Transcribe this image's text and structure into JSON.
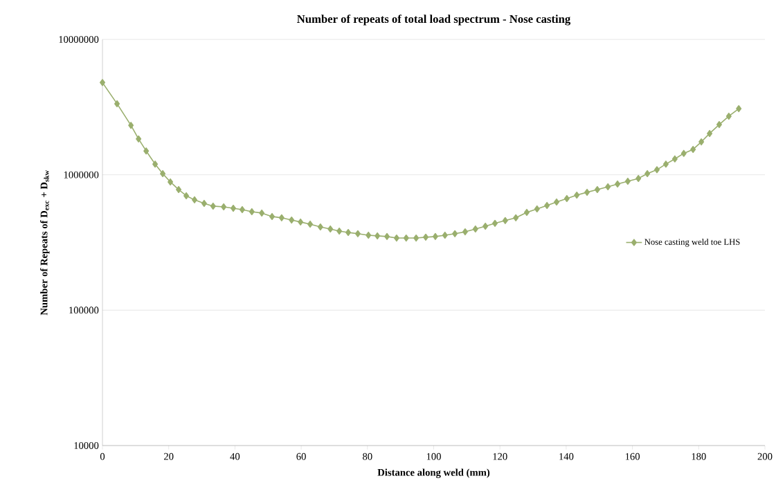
{
  "chart_data": {
    "type": "line",
    "title": "Number of repeats of total load spectrum - Nose casting",
    "xlabel": "Distance along weld (mm)",
    "ylabel": "Number of Repeats of D$_{exc}$ + D$_{skw}$",
    "series": [
      {
        "name": "Nose casting weld toe LHS",
        "color": "#9aaf6e",
        "x": [
          0,
          4.4,
          8.6,
          10.9,
          13.2,
          15.9,
          18.2,
          20.5,
          23.0,
          25.3,
          27.8,
          30.7,
          33.4,
          36.6,
          39.5,
          42.2,
          45.1,
          48.1,
          51.2,
          54.1,
          57.1,
          59.8,
          62.7,
          65.8,
          68.8,
          71.5,
          74.2,
          77.1,
          80.3,
          83.0,
          85.9,
          88.8,
          91.7,
          94.7,
          97.6,
          100.5,
          103.4,
          106.4,
          109.5,
          112.6,
          115.6,
          118.5,
          121.6,
          124.8,
          128.1,
          131.2,
          134.2,
          137.1,
          140.2,
          143.2,
          146.3,
          149.4,
          152.6,
          155.5,
          158.6,
          161.8,
          164.5,
          167.4,
          170.1,
          172.8,
          175.5,
          178.3,
          180.8,
          183.3,
          186.2,
          189.1,
          192.1
        ],
        "values": [
          4800000,
          3350000,
          2320000,
          1840000,
          1500000,
          1200000,
          1020000,
          886000,
          778000,
          700000,
          653000,
          615000,
          587000,
          580000,
          566000,
          553000,
          534000,
          522000,
          492000,
          481000,
          463000,
          448000,
          432000,
          412000,
          398000,
          384000,
          375000,
          367000,
          358000,
          354000,
          350000,
          341000,
          341000,
          341000,
          346000,
          350000,
          358000,
          367000,
          379000,
          398000,
          417000,
          438000,
          459000,
          481000,
          528000,
          560000,
          594000,
          630000,
          668000,
          708000,
          743000,
          778000,
          816000,
          855000,
          896000,
          940000,
          1020000,
          1090000,
          1200000,
          1310000,
          1440000,
          1540000,
          1750000,
          2020000,
          2350000,
          2710000,
          3080000
        ]
      }
    ],
    "xlim": [
      0,
      200
    ],
    "xticks": [
      0,
      20,
      40,
      60,
      80,
      100,
      120,
      140,
      160,
      180,
      200
    ],
    "ylim": [
      10000,
      10000000
    ],
    "yticks": [
      10000,
      100000,
      1000000,
      10000000
    ],
    "log": "y",
    "grid": "y",
    "legend": "right",
    "marker": "diamond",
    "line_style": "solid"
  }
}
